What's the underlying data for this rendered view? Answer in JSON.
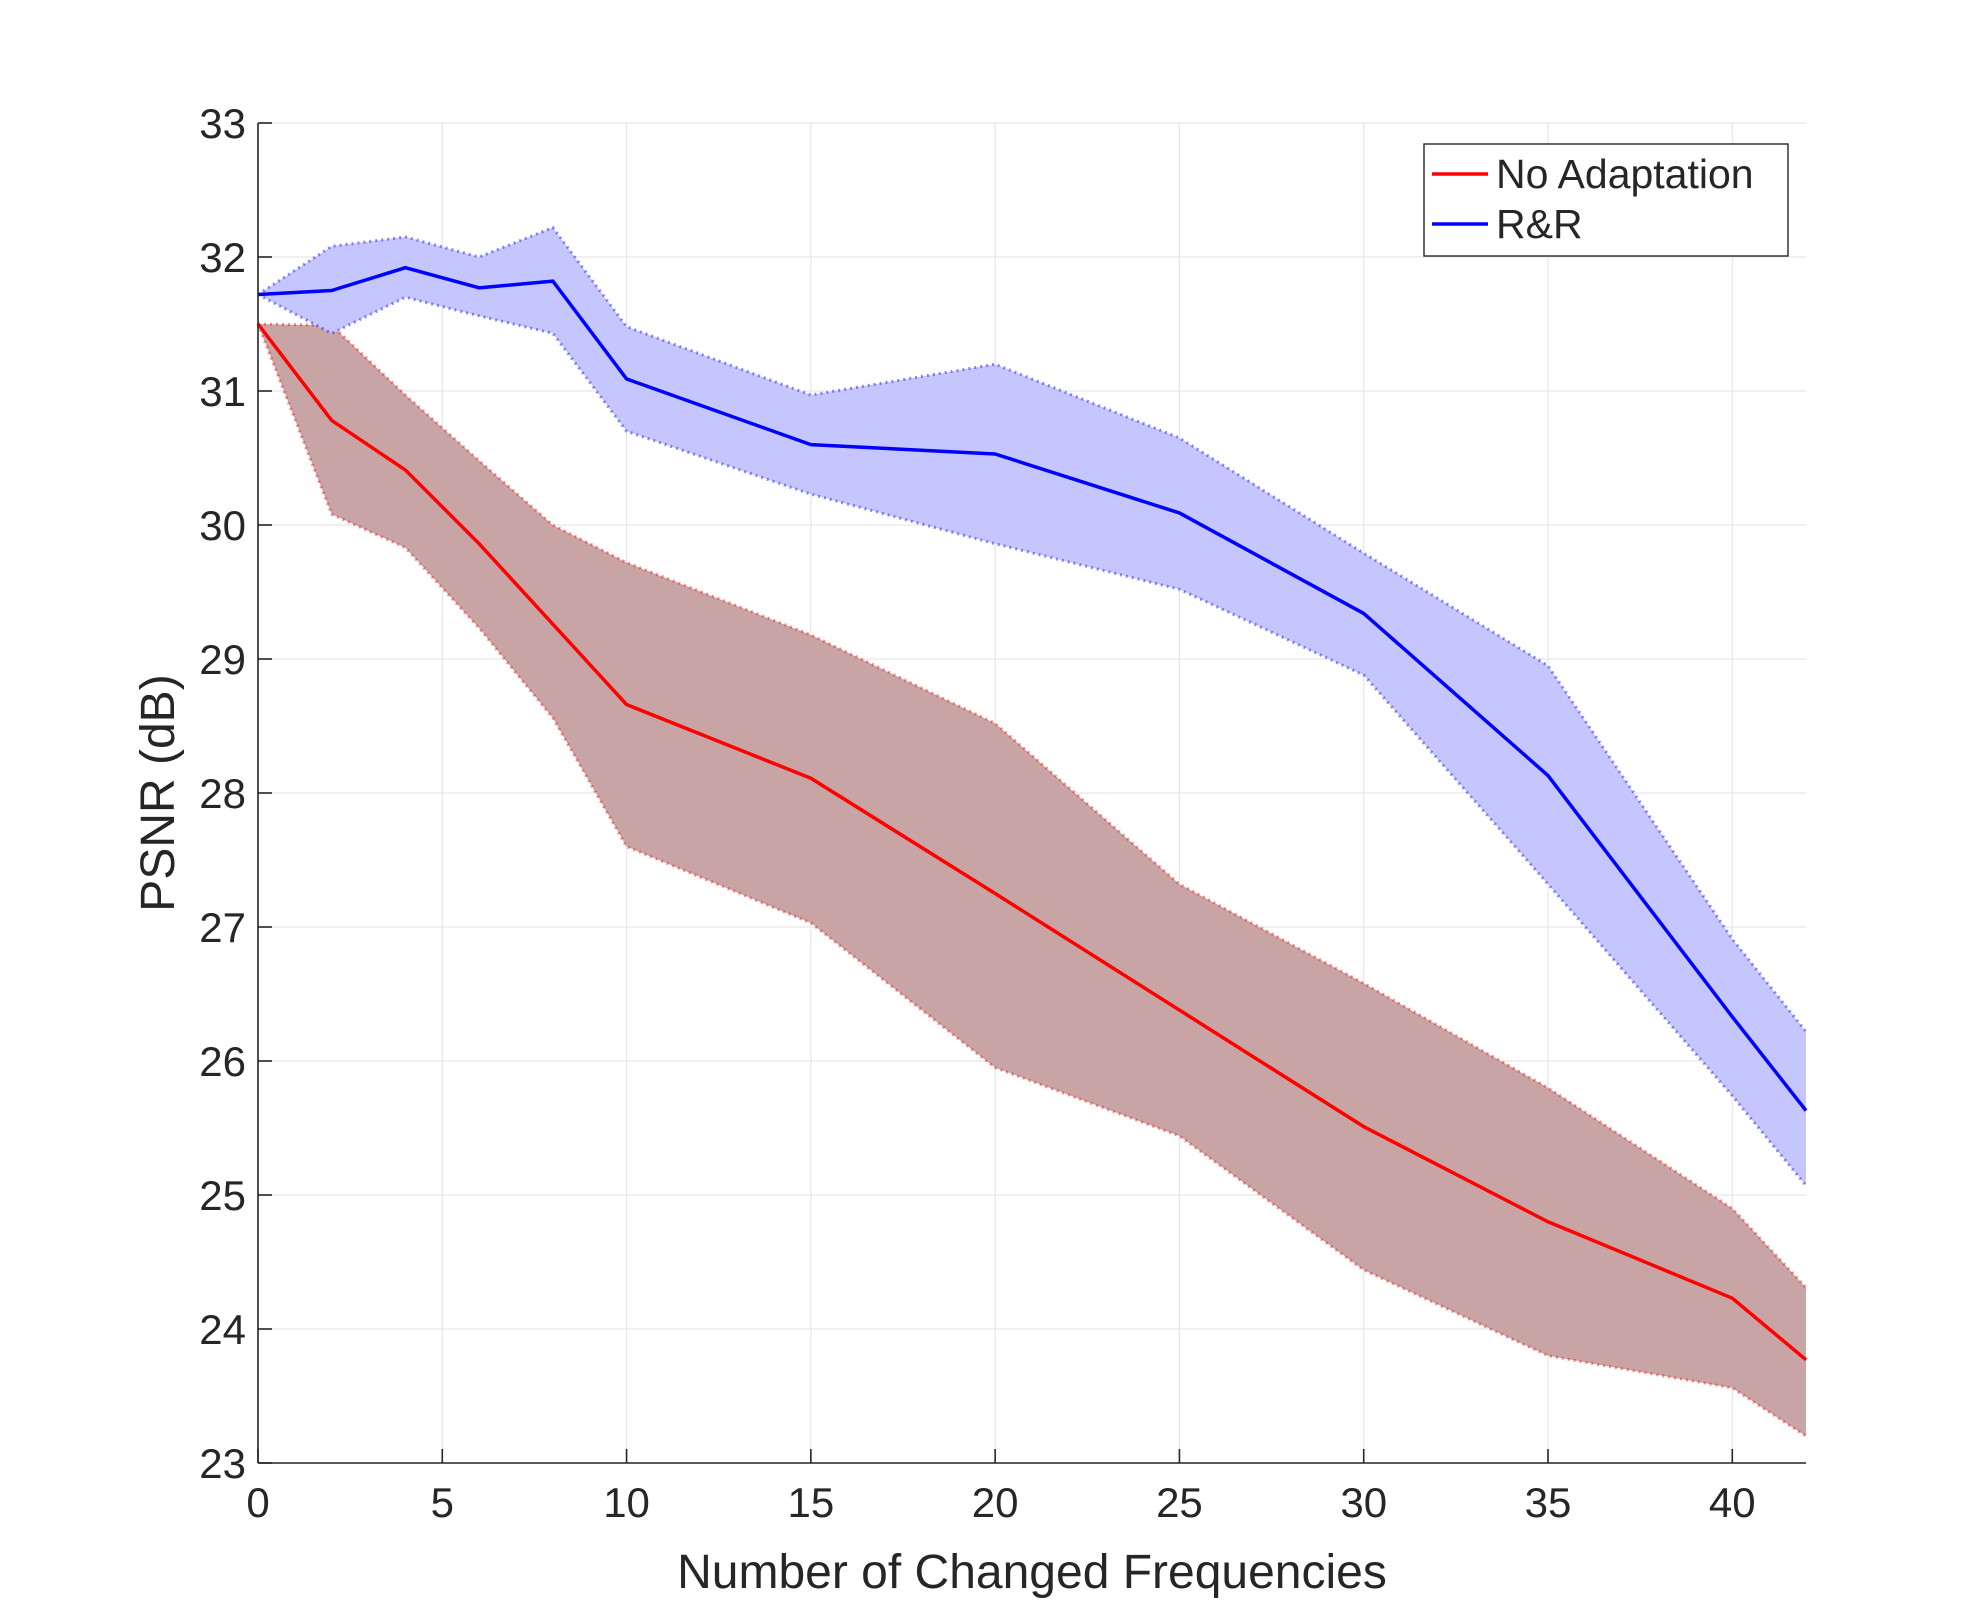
{
  "chart_data": {
    "type": "line",
    "title": "",
    "xlabel": "Number of Changed Frequencies",
    "ylabel": "PSNR (dB)",
    "xlim": [
      0,
      42
    ],
    "ylim": [
      23,
      33
    ],
    "xticks": [
      0,
      5,
      10,
      15,
      20,
      25,
      30,
      35,
      40
    ],
    "yticks": [
      23,
      24,
      25,
      26,
      27,
      28,
      29,
      30,
      31,
      32,
      33
    ],
    "grid": true,
    "legend_position": "top-right",
    "x": [
      0,
      2,
      4,
      6,
      8,
      10,
      15,
      20,
      25,
      30,
      35,
      40,
      42
    ],
    "series": [
      {
        "name": "No Adaptation",
        "color": "#ff0000",
        "band_color": "#c8a4a4",
        "values": [
          31.5,
          30.78,
          30.41,
          29.86,
          29.26,
          28.66,
          28.11,
          27.25,
          26.38,
          25.51,
          24.8,
          24.23,
          23.77
        ],
        "upper": [
          31.5,
          31.49,
          30.97,
          30.48,
          30.0,
          29.72,
          29.18,
          28.52,
          27.32,
          26.58,
          25.8,
          24.9,
          24.31
        ],
        "lower": [
          31.5,
          30.08,
          29.83,
          29.23,
          28.56,
          27.6,
          27.03,
          25.95,
          25.44,
          24.44,
          23.8,
          23.56,
          23.2
        ]
      },
      {
        "name": "R&R",
        "color": "#0000ff",
        "band_color": "#c6c6ff",
        "values": [
          31.72,
          31.75,
          31.92,
          31.77,
          31.82,
          31.09,
          30.6,
          30.53,
          30.09,
          29.34,
          28.13,
          26.33,
          25.63
        ],
        "upper": [
          31.72,
          32.08,
          32.15,
          32.0,
          32.22,
          31.48,
          30.97,
          31.2,
          30.65,
          29.79,
          28.95,
          26.91,
          26.22
        ],
        "lower": [
          31.72,
          31.43,
          31.7,
          31.56,
          31.43,
          30.7,
          30.23,
          29.86,
          29.52,
          28.88,
          27.32,
          25.74,
          25.07
        ]
      }
    ]
  }
}
